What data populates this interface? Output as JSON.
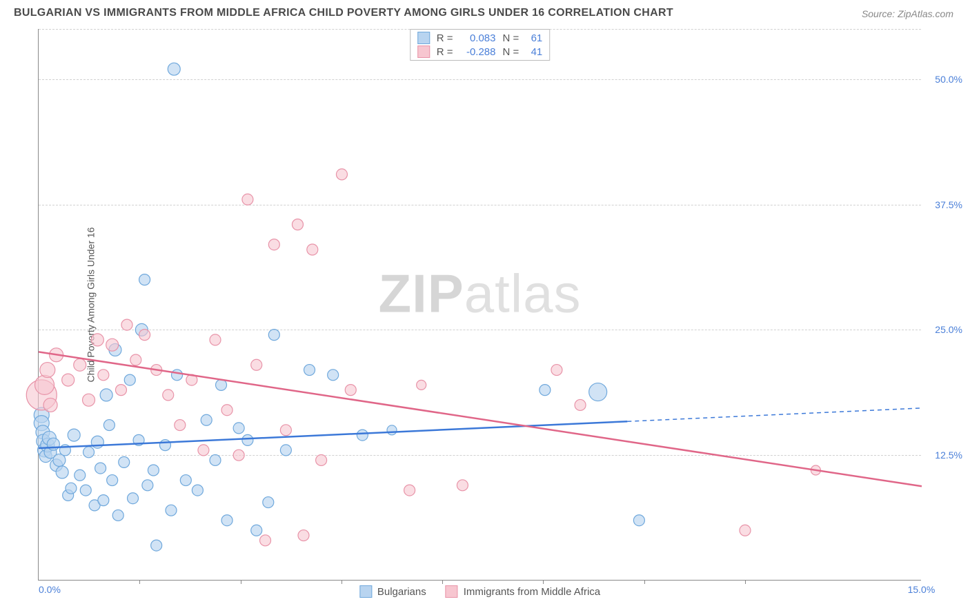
{
  "title": "BULGARIAN VS IMMIGRANTS FROM MIDDLE AFRICA CHILD POVERTY AMONG GIRLS UNDER 16 CORRELATION CHART",
  "source": "Source: ZipAtlas.com",
  "ylabel": "Child Poverty Among Girls Under 16",
  "watermark_zip": "ZIP",
  "watermark_atlas": "atlas",
  "chart": {
    "type": "scatter",
    "xlim": [
      0,
      15
    ],
    "ylim": [
      0,
      55
    ],
    "yticks": [
      12.5,
      25.0,
      37.5,
      50.0
    ],
    "ytick_labels": [
      "12.5%",
      "25.0%",
      "37.5%",
      "50.0%"
    ],
    "xtick_left": "0.0%",
    "xtick_right": "15.0%",
    "xmajors": [
      1.71,
      3.43,
      5.14,
      6.86,
      8.57,
      10.29,
      12.0
    ],
    "background_color": "#ffffff",
    "grid_color": "#d0d0d0",
    "series": [
      {
        "name": "Bulgarians",
        "fill": "#b8d4f0",
        "stroke": "#6fa8dc",
        "fill_opacity": 0.65,
        "line_color": "#3b78d8",
        "line_width": 2.5,
        "dash_from_x": 10.0,
        "R": "0.083",
        "N": "61",
        "trend": {
          "x1": 0,
          "y1": 13.2,
          "x2": 15,
          "y2": 17.2
        },
        "points": [
          {
            "x": 0.05,
            "y": 16.5,
            "r": 11
          },
          {
            "x": 0.05,
            "y": 15.7,
            "r": 11
          },
          {
            "x": 0.07,
            "y": 14.8,
            "r": 10
          },
          {
            "x": 0.08,
            "y": 13.9,
            "r": 10
          },
          {
            "x": 0.1,
            "y": 13.0,
            "r": 10
          },
          {
            "x": 0.12,
            "y": 12.4,
            "r": 9
          },
          {
            "x": 0.15,
            "y": 13.5,
            "r": 10
          },
          {
            "x": 0.18,
            "y": 14.2,
            "r": 10
          },
          {
            "x": 0.2,
            "y": 12.8,
            "r": 9
          },
          {
            "x": 0.25,
            "y": 13.6,
            "r": 9
          },
          {
            "x": 0.3,
            "y": 11.5,
            "r": 9
          },
          {
            "x": 0.35,
            "y": 12.0,
            "r": 9
          },
          {
            "x": 0.4,
            "y": 10.8,
            "r": 9
          },
          {
            "x": 0.45,
            "y": 13.0,
            "r": 8
          },
          {
            "x": 0.5,
            "y": 8.5,
            "r": 8
          },
          {
            "x": 0.55,
            "y": 9.2,
            "r": 8
          },
          {
            "x": 0.6,
            "y": 14.5,
            "r": 9
          },
          {
            "x": 0.7,
            "y": 10.5,
            "r": 8
          },
          {
            "x": 0.8,
            "y": 9.0,
            "r": 8
          },
          {
            "x": 0.85,
            "y": 12.8,
            "r": 8
          },
          {
            "x": 0.95,
            "y": 7.5,
            "r": 8
          },
          {
            "x": 1.0,
            "y": 13.8,
            "r": 9
          },
          {
            "x": 1.05,
            "y": 11.2,
            "r": 8
          },
          {
            "x": 1.1,
            "y": 8.0,
            "r": 8
          },
          {
            "x": 1.15,
            "y": 18.5,
            "r": 9
          },
          {
            "x": 1.2,
            "y": 15.5,
            "r": 8
          },
          {
            "x": 1.25,
            "y": 10.0,
            "r": 8
          },
          {
            "x": 1.3,
            "y": 23.0,
            "r": 9
          },
          {
            "x": 1.35,
            "y": 6.5,
            "r": 8
          },
          {
            "x": 1.45,
            "y": 11.8,
            "r": 8
          },
          {
            "x": 1.55,
            "y": 20.0,
            "r": 8
          },
          {
            "x": 1.6,
            "y": 8.2,
            "r": 8
          },
          {
            "x": 1.7,
            "y": 14.0,
            "r": 8
          },
          {
            "x": 1.75,
            "y": 25.0,
            "r": 9
          },
          {
            "x": 1.8,
            "y": 30.0,
            "r": 8
          },
          {
            "x": 1.85,
            "y": 9.5,
            "r": 8
          },
          {
            "x": 1.95,
            "y": 11.0,
            "r": 8
          },
          {
            "x": 2.0,
            "y": 3.5,
            "r": 8
          },
          {
            "x": 2.15,
            "y": 13.5,
            "r": 8
          },
          {
            "x": 2.25,
            "y": 7.0,
            "r": 8
          },
          {
            "x": 2.3,
            "y": 51.0,
            "r": 9
          },
          {
            "x": 2.35,
            "y": 20.5,
            "r": 8
          },
          {
            "x": 2.5,
            "y": 10.0,
            "r": 8
          },
          {
            "x": 2.7,
            "y": 9.0,
            "r": 8
          },
          {
            "x": 2.85,
            "y": 16.0,
            "r": 8
          },
          {
            "x": 3.0,
            "y": 12.0,
            "r": 8
          },
          {
            "x": 3.1,
            "y": 19.5,
            "r": 8
          },
          {
            "x": 3.2,
            "y": 6.0,
            "r": 8
          },
          {
            "x": 3.4,
            "y": 15.2,
            "r": 8
          },
          {
            "x": 3.55,
            "y": 14.0,
            "r": 8
          },
          {
            "x": 3.7,
            "y": 5.0,
            "r": 8
          },
          {
            "x": 3.9,
            "y": 7.8,
            "r": 8
          },
          {
            "x": 4.0,
            "y": 24.5,
            "r": 8
          },
          {
            "x": 4.2,
            "y": 13.0,
            "r": 8
          },
          {
            "x": 4.6,
            "y": 21.0,
            "r": 8
          },
          {
            "x": 5.0,
            "y": 20.5,
            "r": 8
          },
          {
            "x": 5.5,
            "y": 14.5,
            "r": 8
          },
          {
            "x": 6.0,
            "y": 15.0,
            "r": 7
          },
          {
            "x": 8.6,
            "y": 19.0,
            "r": 8
          },
          {
            "x": 9.5,
            "y": 18.8,
            "r": 13
          },
          {
            "x": 10.2,
            "y": 6.0,
            "r": 8
          }
        ]
      },
      {
        "name": "Immigrants from Middle Africa",
        "fill": "#f7c6d0",
        "stroke": "#e893a8",
        "fill_opacity": 0.6,
        "line_color": "#e06688",
        "line_width": 2.5,
        "R": "-0.288",
        "N": "41",
        "trend": {
          "x1": 0,
          "y1": 22.8,
          "x2": 15,
          "y2": 9.4
        },
        "points": [
          {
            "x": 0.05,
            "y": 18.5,
            "r": 22
          },
          {
            "x": 0.1,
            "y": 19.5,
            "r": 14
          },
          {
            "x": 0.15,
            "y": 21.0,
            "r": 11
          },
          {
            "x": 0.2,
            "y": 17.5,
            "r": 10
          },
          {
            "x": 0.3,
            "y": 22.5,
            "r": 10
          },
          {
            "x": 0.5,
            "y": 20.0,
            "r": 9
          },
          {
            "x": 0.7,
            "y": 21.5,
            "r": 9
          },
          {
            "x": 0.85,
            "y": 18.0,
            "r": 9
          },
          {
            "x": 1.0,
            "y": 24.0,
            "r": 9
          },
          {
            "x": 1.1,
            "y": 20.5,
            "r": 8
          },
          {
            "x": 1.25,
            "y": 23.5,
            "r": 9
          },
          {
            "x": 1.4,
            "y": 19.0,
            "r": 8
          },
          {
            "x": 1.5,
            "y": 25.5,
            "r": 8
          },
          {
            "x": 1.65,
            "y": 22.0,
            "r": 8
          },
          {
            "x": 1.8,
            "y": 24.5,
            "r": 8
          },
          {
            "x": 2.0,
            "y": 21.0,
            "r": 8
          },
          {
            "x": 2.2,
            "y": 18.5,
            "r": 8
          },
          {
            "x": 2.4,
            "y": 15.5,
            "r": 8
          },
          {
            "x": 2.6,
            "y": 20.0,
            "r": 8
          },
          {
            "x": 2.8,
            "y": 13.0,
            "r": 8
          },
          {
            "x": 3.0,
            "y": 24.0,
            "r": 8
          },
          {
            "x": 3.2,
            "y": 17.0,
            "r": 8
          },
          {
            "x": 3.4,
            "y": 12.5,
            "r": 8
          },
          {
            "x": 3.55,
            "y": 38.0,
            "r": 8
          },
          {
            "x": 3.7,
            "y": 21.5,
            "r": 8
          },
          {
            "x": 3.85,
            "y": 4.0,
            "r": 8
          },
          {
            "x": 4.0,
            "y": 33.5,
            "r": 8
          },
          {
            "x": 4.2,
            "y": 15.0,
            "r": 8
          },
          {
            "x": 4.4,
            "y": 35.5,
            "r": 8
          },
          {
            "x": 4.5,
            "y": 4.5,
            "r": 8
          },
          {
            "x": 4.65,
            "y": 33.0,
            "r": 8
          },
          {
            "x": 4.8,
            "y": 12.0,
            "r": 8
          },
          {
            "x": 5.15,
            "y": 40.5,
            "r": 8
          },
          {
            "x": 5.3,
            "y": 19.0,
            "r": 8
          },
          {
            "x": 6.3,
            "y": 9.0,
            "r": 8
          },
          {
            "x": 6.5,
            "y": 19.5,
            "r": 7
          },
          {
            "x": 7.2,
            "y": 9.5,
            "r": 8
          },
          {
            "x": 8.8,
            "y": 21.0,
            "r": 8
          },
          {
            "x": 9.2,
            "y": 17.5,
            "r": 8
          },
          {
            "x": 12.0,
            "y": 5.0,
            "r": 8
          },
          {
            "x": 13.2,
            "y": 11.0,
            "r": 7
          }
        ]
      }
    ]
  },
  "legend": {
    "top_labels": {
      "R": "R =",
      "N": "N ="
    },
    "bottom": [
      "Bulgarians",
      "Immigrants from Middle Africa"
    ]
  }
}
